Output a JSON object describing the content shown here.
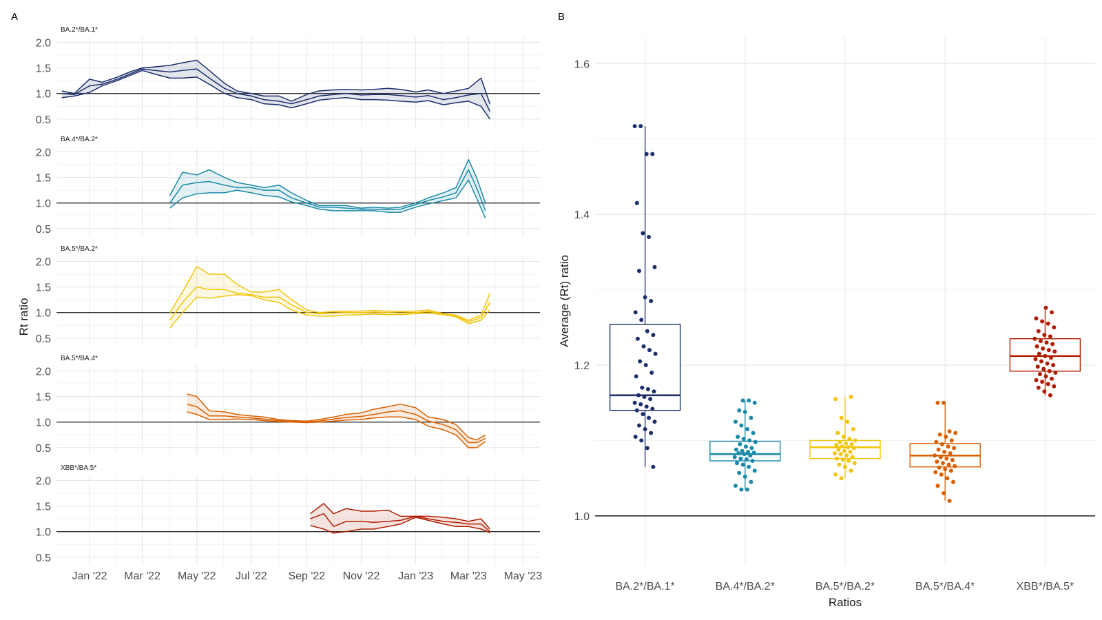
{
  "panel_labels": [
    "A",
    "B"
  ],
  "chart_data": [
    {
      "type": "line",
      "panel": "A",
      "ylabel": "Rt ratio",
      "xlabel": "",
      "xlim": [
        "2021-11-25",
        "2023-05-20"
      ],
      "ylim": [
        0.35,
        2.1
      ],
      "x_ticks": [
        {
          "date": "2022-01-01",
          "label": "Jan '22"
        },
        {
          "date": "2022-03-01",
          "label": "Mar '22"
        },
        {
          "date": "2022-05-01",
          "label": "May '22"
        },
        {
          "date": "2022-07-01",
          "label": "Jul '22"
        },
        {
          "date": "2022-09-01",
          "label": "Sep '22"
        },
        {
          "date": "2022-11-01",
          "label": "Nov '22"
        },
        {
          "date": "2023-01-01",
          "label": "Jan '23"
        },
        {
          "date": "2023-03-01",
          "label": "Mar '23"
        },
        {
          "date": "2023-05-01",
          "label": "May '23"
        }
      ],
      "y_ticks": [
        "0.5",
        "1.0",
        "1.5",
        "2.0"
      ],
      "reference_line": 1.0,
      "facets": [
        {
          "name": "BA.2*/BA.1*",
          "color": "#1c2f6b",
          "x": [
            "2021-12-01",
            "2021-12-15",
            "2022-01-01",
            "2022-01-15",
            "2022-02-01",
            "2022-02-15",
            "2022-03-01",
            "2022-03-15",
            "2022-04-01",
            "2022-04-15",
            "2022-05-01",
            "2022-05-15",
            "2022-06-01",
            "2022-06-15",
            "2022-07-01",
            "2022-07-15",
            "2022-08-01",
            "2022-08-15",
            "2022-09-01",
            "2022-09-15",
            "2022-10-01",
            "2022-10-15",
            "2022-11-01",
            "2022-11-15",
            "2022-12-01",
            "2022-12-15",
            "2023-01-01",
            "2023-01-15",
            "2023-02-01",
            "2023-02-15",
            "2023-03-01",
            "2023-03-15",
            "2023-03-25"
          ],
          "upper": [
            1.05,
            1.0,
            1.28,
            1.22,
            1.32,
            1.42,
            1.5,
            1.52,
            1.55,
            1.6,
            1.65,
            1.45,
            1.2,
            1.05,
            1.0,
            0.95,
            0.95,
            0.85,
            0.98,
            1.05,
            1.07,
            1.08,
            1.07,
            1.08,
            1.1,
            1.08,
            1.03,
            1.07,
            1.0,
            1.05,
            1.1,
            1.3,
            0.8
          ],
          "mid": [
            1.0,
            0.98,
            1.15,
            1.18,
            1.28,
            1.38,
            1.48,
            1.45,
            1.42,
            1.45,
            1.48,
            1.3,
            1.1,
            1.0,
            0.95,
            0.88,
            0.85,
            0.8,
            0.88,
            0.95,
            0.98,
            1.0,
            0.97,
            0.98,
            0.98,
            0.96,
            0.93,
            0.96,
            0.88,
            0.92,
            0.97,
            1.0,
            0.65
          ],
          "lower": [
            0.92,
            0.95,
            1.02,
            1.15,
            1.25,
            1.35,
            1.45,
            1.38,
            1.3,
            1.3,
            1.32,
            1.18,
            1.0,
            0.92,
            0.88,
            0.8,
            0.78,
            0.72,
            0.8,
            0.87,
            0.9,
            0.92,
            0.88,
            0.88,
            0.87,
            0.85,
            0.83,
            0.86,
            0.78,
            0.82,
            0.85,
            0.75,
            0.5
          ]
        },
        {
          "name": "BA.4*/BA.2*",
          "color": "#1a8aa8",
          "x": [
            "2022-04-01",
            "2022-04-15",
            "2022-05-01",
            "2022-05-15",
            "2022-06-01",
            "2022-06-15",
            "2022-07-01",
            "2022-07-15",
            "2022-08-01",
            "2022-08-15",
            "2022-09-01",
            "2022-09-15",
            "2022-10-01",
            "2022-10-15",
            "2022-11-01",
            "2022-11-15",
            "2022-12-01",
            "2022-12-15",
            "2023-01-01",
            "2023-01-15",
            "2023-02-01",
            "2023-02-15",
            "2023-03-01",
            "2023-03-10",
            "2023-03-20"
          ],
          "upper": [
            1.15,
            1.6,
            1.55,
            1.65,
            1.5,
            1.4,
            1.35,
            1.3,
            1.35,
            1.2,
            1.05,
            0.95,
            0.95,
            0.95,
            0.9,
            0.92,
            0.9,
            0.92,
            1.0,
            1.1,
            1.2,
            1.3,
            1.85,
            1.5,
            1.0
          ],
          "mid": [
            1.0,
            1.35,
            1.4,
            1.42,
            1.35,
            1.3,
            1.3,
            1.25,
            1.25,
            1.1,
            1.0,
            0.92,
            0.92,
            0.9,
            0.88,
            0.88,
            0.87,
            0.88,
            0.97,
            1.05,
            1.12,
            1.2,
            1.65,
            1.3,
            0.85
          ],
          "lower": [
            0.9,
            1.1,
            1.18,
            1.2,
            1.2,
            1.25,
            1.2,
            1.15,
            1.12,
            1.02,
            0.95,
            0.88,
            0.85,
            0.85,
            0.85,
            0.85,
            0.82,
            0.82,
            0.92,
            0.98,
            1.05,
            1.1,
            1.45,
            1.1,
            0.7
          ]
        },
        {
          "name": "BA.5*/BA.2*",
          "color": "#f2c40c",
          "x": [
            "2022-04-01",
            "2022-04-15",
            "2022-05-01",
            "2022-05-15",
            "2022-06-01",
            "2022-06-15",
            "2022-07-01",
            "2022-07-15",
            "2022-08-01",
            "2022-08-15",
            "2022-09-01",
            "2022-09-15",
            "2022-10-01",
            "2022-10-15",
            "2022-11-01",
            "2022-11-15",
            "2022-12-01",
            "2022-12-15",
            "2023-01-01",
            "2023-01-15",
            "2023-02-01",
            "2023-02-15",
            "2023-03-01",
            "2023-03-15",
            "2023-03-25"
          ],
          "upper": [
            1.0,
            1.4,
            1.9,
            1.75,
            1.75,
            1.55,
            1.4,
            1.4,
            1.45,
            1.25,
            1.05,
            1.0,
            1.02,
            1.02,
            1.03,
            1.04,
            1.03,
            1.02,
            1.03,
            1.05,
            0.98,
            0.95,
            0.85,
            0.95,
            1.38
          ],
          "mid": [
            0.85,
            1.2,
            1.5,
            1.45,
            1.45,
            1.38,
            1.35,
            1.3,
            1.3,
            1.15,
            1.0,
            0.98,
            0.99,
            1.0,
            1.0,
            1.01,
            1.0,
            0.99,
            1.0,
            1.02,
            0.97,
            0.93,
            0.82,
            0.9,
            1.2
          ],
          "lower": [
            0.7,
            1.0,
            1.3,
            1.28,
            1.32,
            1.35,
            1.33,
            1.25,
            1.2,
            1.05,
            0.95,
            0.93,
            0.93,
            0.95,
            0.96,
            0.97,
            0.96,
            0.96,
            0.98,
            0.99,
            0.96,
            0.92,
            0.78,
            0.85,
            1.05
          ]
        },
        {
          "name": "BA.5*/BA.4*",
          "color": "#d96000",
          "x": [
            "2022-04-20",
            "2022-05-01",
            "2022-05-15",
            "2022-06-01",
            "2022-06-15",
            "2022-07-01",
            "2022-07-15",
            "2022-08-01",
            "2022-08-15",
            "2022-09-01",
            "2022-09-15",
            "2022-10-01",
            "2022-10-15",
            "2022-11-01",
            "2022-11-15",
            "2022-12-01",
            "2022-12-15",
            "2023-01-01",
            "2023-01-15",
            "2023-02-01",
            "2023-02-15",
            "2023-03-01",
            "2023-03-10",
            "2023-03-20"
          ],
          "upper": [
            1.55,
            1.5,
            1.22,
            1.2,
            1.15,
            1.12,
            1.1,
            1.05,
            1.03,
            1.02,
            1.05,
            1.1,
            1.15,
            1.18,
            1.25,
            1.3,
            1.35,
            1.28,
            1.1,
            1.05,
            0.95,
            0.7,
            0.65,
            0.75
          ],
          "mid": [
            1.35,
            1.3,
            1.12,
            1.12,
            1.1,
            1.08,
            1.06,
            1.03,
            1.02,
            1.0,
            1.02,
            1.06,
            1.09,
            1.11,
            1.15,
            1.2,
            1.22,
            1.15,
            1.02,
            0.95,
            0.85,
            0.6,
            0.6,
            0.68
          ],
          "lower": [
            1.2,
            1.15,
            1.05,
            1.05,
            1.06,
            1.05,
            1.03,
            1.01,
            1.0,
            0.99,
            1.0,
            1.02,
            1.04,
            1.05,
            1.08,
            1.1,
            1.1,
            1.05,
            0.92,
            0.85,
            0.75,
            0.5,
            0.5,
            0.62
          ]
        },
        {
          "name": "XBB*/BA.5*",
          "color": "#b01c00",
          "x": [
            "2022-09-05",
            "2022-09-20",
            "2022-10-01",
            "2022-10-15",
            "2022-11-01",
            "2022-11-15",
            "2022-12-01",
            "2022-12-15",
            "2023-01-01",
            "2023-01-15",
            "2023-02-01",
            "2023-02-15",
            "2023-03-01",
            "2023-03-15",
            "2023-03-25"
          ],
          "upper": [
            1.35,
            1.55,
            1.35,
            1.45,
            1.4,
            1.4,
            1.42,
            1.3,
            1.3,
            1.3,
            1.28,
            1.25,
            1.2,
            1.25,
            1.05
          ],
          "mid": [
            1.25,
            1.35,
            1.1,
            1.2,
            1.2,
            1.18,
            1.2,
            1.22,
            1.3,
            1.25,
            1.2,
            1.18,
            1.15,
            1.15,
            1.0
          ],
          "lower": [
            1.12,
            1.05,
            0.97,
            1.0,
            1.05,
            1.05,
            1.1,
            1.15,
            1.28,
            1.22,
            1.15,
            1.1,
            1.1,
            1.05,
            0.98
          ]
        }
      ]
    },
    {
      "type": "box",
      "panel": "B",
      "xlabel": "Ratios",
      "ylabel": "Average (Rt) ratio",
      "ylim": [
        0.935,
        1.635
      ],
      "y_ticks": [
        "1.0",
        "1.2",
        "1.4",
        "1.6"
      ],
      "reference_line": 1.0,
      "categories": [
        "BA.2*/BA.1*",
        "BA.4*/BA.2*",
        "BA.5*/BA.2*",
        "BA.5*/BA.4*",
        "XBB*/BA.5*"
      ],
      "series": [
        {
          "name": "BA.2*/BA.1*",
          "color": "#1c2f6b",
          "whisker_low": 1.065,
          "q1": 1.14,
          "median": 1.16,
          "q3": 1.254,
          "whisker_high": 1.517,
          "points": [
            1.517,
            1.517,
            1.48,
            1.48,
            1.415,
            1.375,
            1.37,
            1.33,
            1.325,
            1.29,
            1.285,
            1.27,
            1.26,
            1.245,
            1.24,
            1.235,
            1.225,
            1.22,
            1.215,
            1.205,
            1.2,
            1.19,
            1.185,
            1.17,
            1.168,
            1.165,
            1.16,
            1.158,
            1.155,
            1.15,
            1.148,
            1.145,
            1.142,
            1.14,
            1.135,
            1.13,
            1.125,
            1.12,
            1.115,
            1.11,
            1.105,
            1.1,
            1.09,
            1.065
          ]
        },
        {
          "name": "BA.4*/BA.2*",
          "color": "#1a8aa8",
          "whisker_low": 1.035,
          "q1": 1.073,
          "median": 1.082,
          "q3": 1.099,
          "whisker_high": 1.153,
          "points": [
            1.153,
            1.153,
            1.15,
            1.14,
            1.138,
            1.13,
            1.125,
            1.12,
            1.115,
            1.11,
            1.105,
            1.102,
            1.1,
            1.098,
            1.095,
            1.092,
            1.09,
            1.088,
            1.086,
            1.085,
            1.084,
            1.083,
            1.082,
            1.08,
            1.078,
            1.076,
            1.075,
            1.073,
            1.07,
            1.068,
            1.065,
            1.06,
            1.057,
            1.052,
            1.045,
            1.04,
            1.035,
            1.035
          ]
        },
        {
          "name": "BA.5*/BA.2*",
          "color": "#f2c40c",
          "whisker_low": 1.05,
          "q1": 1.076,
          "median": 1.091,
          "q3": 1.1,
          "whisker_high": 1.158,
          "points": [
            1.158,
            1.155,
            1.13,
            1.125,
            1.115,
            1.11,
            1.105,
            1.102,
            1.1,
            1.098,
            1.096,
            1.095,
            1.094,
            1.092,
            1.091,
            1.09,
            1.088,
            1.086,
            1.085,
            1.083,
            1.082,
            1.08,
            1.078,
            1.076,
            1.075,
            1.073,
            1.07,
            1.068,
            1.065,
            1.06,
            1.055,
            1.05
          ]
        },
        {
          "name": "BA.5*/BA.4*",
          "color": "#d96000",
          "whisker_low": 1.02,
          "q1": 1.065,
          "median": 1.08,
          "q3": 1.096,
          "whisker_high": 1.15,
          "points": [
            1.15,
            1.15,
            1.112,
            1.11,
            1.108,
            1.105,
            1.1,
            1.098,
            1.095,
            1.092,
            1.09,
            1.088,
            1.085,
            1.083,
            1.08,
            1.078,
            1.076,
            1.074,
            1.072,
            1.07,
            1.068,
            1.066,
            1.064,
            1.062,
            1.06,
            1.058,
            1.055,
            1.05,
            1.045,
            1.04,
            1.03,
            1.02
          ]
        },
        {
          "name": "XBB*/BA.5*",
          "color": "#b01c00",
          "whisker_low": 1.16,
          "q1": 1.192,
          "median": 1.212,
          "q3": 1.235,
          "whisker_high": 1.276,
          "points": [
            1.276,
            1.27,
            1.262,
            1.258,
            1.255,
            1.25,
            1.245,
            1.24,
            1.238,
            1.235,
            1.232,
            1.23,
            1.228,
            1.225,
            1.222,
            1.22,
            1.218,
            1.215,
            1.212,
            1.21,
            1.208,
            1.205,
            1.202,
            1.2,
            1.198,
            1.195,
            1.192,
            1.19,
            1.188,
            1.185,
            1.182,
            1.18,
            1.178,
            1.175,
            1.172,
            1.17,
            1.165,
            1.16
          ]
        }
      ]
    }
  ]
}
